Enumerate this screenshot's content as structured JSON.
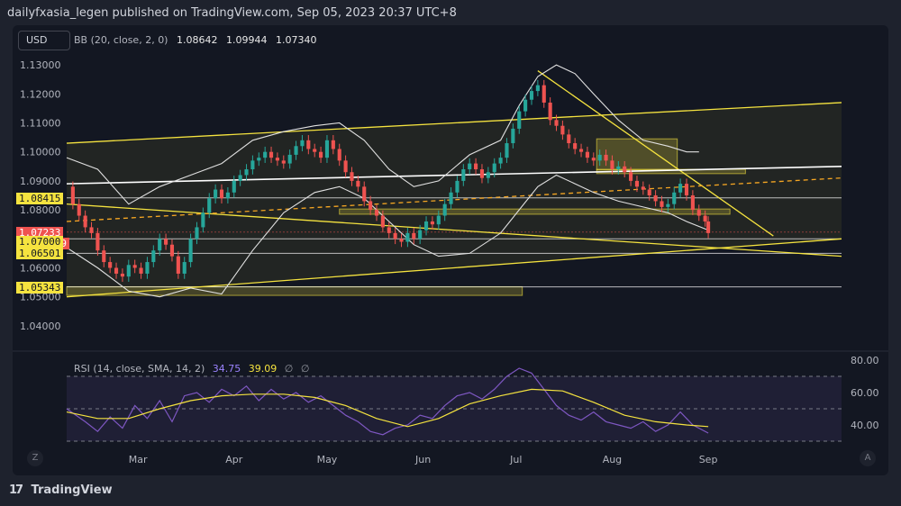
{
  "header": {
    "publisher_line": "dailyfxasia_legen published on TradingView.com, Sep 05, 2023 20:37 UTC+8"
  },
  "toolbar": {
    "currency": "USD"
  },
  "legend": {
    "indicator": "BB (20, close, 2, 0)",
    "basis": "1.08642",
    "upper": "1.09944",
    "lower": "1.07340"
  },
  "rsi_legend": {
    "indicator": "RSI (14, close, SMA, 14, 2)",
    "rsi": "34.75",
    "sma": "39.09",
    "extra1": "∅",
    "extra2": "∅"
  },
  "price_tags": [
    {
      "label": "1.08415",
      "style": "yellow"
    },
    {
      "label": "1.07233",
      "style": "red"
    },
    {
      "label": "09:22:49",
      "style": "red"
    },
    {
      "label": "1.07000",
      "style": "yellow"
    },
    {
      "label": "1.06501",
      "style": "yellow"
    },
    {
      "label": "1.05343",
      "style": "yellow"
    }
  ],
  "footer": {
    "brand": "TradingView",
    "logo_glyph": "17"
  },
  "corner_buttons": {
    "left": "Z",
    "right": "A"
  },
  "colors": {
    "up": "#26a69a",
    "down": "#ef5350",
    "trendline": "#f5e33f",
    "rsi": "#7e57c2",
    "bollinger": "#e0e0e0",
    "background": "#131722"
  },
  "chart_data": [
    {
      "type": "candlestick",
      "title": "",
      "ylim": [
        1.035,
        1.135
      ],
      "y_ticks": [
        "1.13000",
        "1.12000",
        "1.11000",
        "1.10000",
        "1.09000",
        "1.08000",
        "1.07000",
        "1.06000",
        "1.05000",
        "1.04000"
      ],
      "y_tick_values": [
        1.13,
        1.12,
        1.11,
        1.1,
        1.09,
        1.08,
        1.07,
        1.06,
        1.05,
        1.04
      ],
      "x_ticks": [
        "Mar",
        "Apr",
        "May",
        "Jun",
        "Jul",
        "Aug",
        "Sep"
      ],
      "x_tick_days": [
        23,
        54,
        84,
        115,
        145,
        176,
        207
      ],
      "day_range": [
        0,
        250
      ],
      "last_price": 1.07233,
      "close_series": [
        [
          0,
          1.088
        ],
        [
          2,
          1.082
        ],
        [
          4,
          1.078
        ],
        [
          6,
          1.074
        ],
        [
          8,
          1.072
        ],
        [
          10,
          1.066
        ],
        [
          12,
          1.062
        ],
        [
          14,
          1.06
        ],
        [
          16,
          1.058
        ],
        [
          18,
          1.057
        ],
        [
          20,
          1.061
        ],
        [
          22,
          1.06
        ],
        [
          24,
          1.058
        ],
        [
          26,
          1.062
        ],
        [
          28,
          1.066
        ],
        [
          30,
          1.07
        ],
        [
          32,
          1.068
        ],
        [
          34,
          1.064
        ],
        [
          36,
          1.058
        ],
        [
          38,
          1.062
        ],
        [
          40,
          1.07
        ],
        [
          42,
          1.074
        ],
        [
          44,
          1.079
        ],
        [
          46,
          1.084
        ],
        [
          48,
          1.087
        ],
        [
          50,
          1.084
        ],
        [
          52,
          1.086
        ],
        [
          54,
          1.09
        ],
        [
          56,
          1.092
        ],
        [
          58,
          1.094
        ],
        [
          60,
          1.097
        ],
        [
          62,
          1.098
        ],
        [
          64,
          1.1
        ],
        [
          66,
          1.098
        ],
        [
          68,
          1.097
        ],
        [
          70,
          1.096
        ],
        [
          72,
          1.099
        ],
        [
          74,
          1.102
        ],
        [
          76,
          1.104
        ],
        [
          78,
          1.101
        ],
        [
          80,
          1.1
        ],
        [
          82,
          1.098
        ],
        [
          84,
          1.104
        ],
        [
          86,
          1.101
        ],
        [
          88,
          1.097
        ],
        [
          90,
          1.093
        ],
        [
          92,
          1.09
        ],
        [
          94,
          1.088
        ],
        [
          96,
          1.083
        ],
        [
          98,
          1.08
        ],
        [
          100,
          1.078
        ],
        [
          102,
          1.074
        ],
        [
          104,
          1.072
        ],
        [
          106,
          1.07
        ],
        [
          108,
          1.069
        ],
        [
          110,
          1.072
        ],
        [
          112,
          1.07
        ],
        [
          114,
          1.073
        ],
        [
          116,
          1.076
        ],
        [
          118,
          1.075
        ],
        [
          120,
          1.078
        ],
        [
          122,
          1.082
        ],
        [
          124,
          1.086
        ],
        [
          126,
          1.09
        ],
        [
          128,
          1.094
        ],
        [
          130,
          1.096
        ],
        [
          132,
          1.094
        ],
        [
          134,
          1.091
        ],
        [
          136,
          1.093
        ],
        [
          138,
          1.096
        ],
        [
          140,
          1.098
        ],
        [
          142,
          1.103
        ],
        [
          144,
          1.108
        ],
        [
          146,
          1.114
        ],
        [
          148,
          1.118
        ],
        [
          150,
          1.121
        ],
        [
          152,
          1.123
        ],
        [
          154,
          1.117
        ],
        [
          156,
          1.111
        ],
        [
          158,
          1.109
        ],
        [
          160,
          1.106
        ],
        [
          162,
          1.103
        ],
        [
          164,
          1.101
        ],
        [
          166,
          1.1
        ],
        [
          168,
          1.098
        ],
        [
          170,
          1.097
        ],
        [
          172,
          1.099
        ],
        [
          174,
          1.097
        ],
        [
          176,
          1.094
        ],
        [
          178,
          1.095
        ],
        [
          180,
          1.093
        ],
        [
          182,
          1.09
        ],
        [
          184,
          1.088
        ],
        [
          186,
          1.087
        ],
        [
          188,
          1.085
        ],
        [
          190,
          1.083
        ],
        [
          192,
          1.081
        ],
        [
          194,
          1.082
        ],
        [
          196,
          1.086
        ],
        [
          198,
          1.089
        ],
        [
          200,
          1.085
        ],
        [
          202,
          1.08
        ],
        [
          204,
          1.078
        ],
        [
          206,
          1.076
        ],
        [
          207,
          1.072
        ]
      ],
      "bollinger_upper": [
        [
          0,
          1.098
        ],
        [
          10,
          1.094
        ],
        [
          20,
          1.082
        ],
        [
          30,
          1.088
        ],
        [
          40,
          1.092
        ],
        [
          50,
          1.096
        ],
        [
          60,
          1.104
        ],
        [
          70,
          1.107
        ],
        [
          80,
          1.109
        ],
        [
          88,
          1.11
        ],
        [
          96,
          1.104
        ],
        [
          104,
          1.094
        ],
        [
          112,
          1.088
        ],
        [
          120,
          1.09
        ],
        [
          130,
          1.099
        ],
        [
          140,
          1.104
        ],
        [
          146,
          1.116
        ],
        [
          152,
          1.126
        ],
        [
          158,
          1.13
        ],
        [
          164,
          1.127
        ],
        [
          170,
          1.12
        ],
        [
          178,
          1.111
        ],
        [
          186,
          1.104
        ],
        [
          194,
          1.102
        ],
        [
          200,
          1.1
        ],
        [
          204,
          1.1
        ]
      ],
      "bollinger_middle": [
        [
          0,
          1.08
        ],
        [
          10,
          1.075
        ],
        [
          20,
          1.068
        ],
        [
          30,
          1.066
        ],
        [
          40,
          1.071
        ],
        [
          50,
          1.08
        ],
        [
          60,
          1.088
        ],
        [
          70,
          1.093
        ],
        [
          80,
          1.097
        ],
        [
          88,
          1.098
        ],
        [
          96,
          1.095
        ],
        [
          104,
          1.088
        ],
        [
          112,
          1.08
        ],
        [
          120,
          1.078
        ],
        [
          130,
          1.083
        ],
        [
          140,
          1.093
        ],
        [
          146,
          1.102
        ],
        [
          152,
          1.108
        ],
        [
          158,
          1.112
        ],
        [
          164,
          1.108
        ],
        [
          170,
          1.103
        ],
        [
          178,
          1.098
        ],
        [
          186,
          1.094
        ],
        [
          194,
          1.09
        ],
        [
          200,
          1.088
        ],
        [
          207,
          1.086
        ]
      ],
      "bollinger_lower": [
        [
          0,
          1.067
        ],
        [
          10,
          1.06
        ],
        [
          20,
          1.052
        ],
        [
          30,
          1.05
        ],
        [
          40,
          1.053
        ],
        [
          50,
          1.051
        ],
        [
          60,
          1.066
        ],
        [
          70,
          1.079
        ],
        [
          80,
          1.086
        ],
        [
          88,
          1.088
        ],
        [
          96,
          1.084
        ],
        [
          104,
          1.076
        ],
        [
          112,
          1.068
        ],
        [
          120,
          1.064
        ],
        [
          130,
          1.065
        ],
        [
          140,
          1.072
        ],
        [
          146,
          1.08
        ],
        [
          152,
          1.088
        ],
        [
          158,
          1.092
        ],
        [
          164,
          1.089
        ],
        [
          170,
          1.086
        ],
        [
          178,
          1.083
        ],
        [
          186,
          1.081
        ],
        [
          194,
          1.079
        ],
        [
          200,
          1.076
        ],
        [
          207,
          1.073
        ]
      ],
      "trendlines": [
        {
          "kind": "yellow",
          "points": [
            [
              0,
              1.103
            ],
            [
              250,
              1.117
            ]
          ]
        },
        {
          "kind": "yellow",
          "points": [
            [
              0,
              1.082
            ],
            [
              250,
              1.064
            ]
          ]
        },
        {
          "kind": "yellow",
          "points": [
            [
              0,
              1.05
            ],
            [
              250,
              1.07
            ]
          ]
        },
        {
          "kind": "yellow",
          "points": [
            [
              152,
              1.128
            ],
            [
              228,
              1.071
            ]
          ]
        },
        {
          "kind": "white",
          "points": [
            [
              0,
              1.089
            ],
            [
              250,
              1.095
            ]
          ]
        },
        {
          "kind": "orange-dashed",
          "points": [
            [
              0,
              1.076
            ],
            [
              250,
              1.091
            ]
          ]
        }
      ],
      "horizontal_levels": [
        1.08415,
        1.07233,
        1.07,
        1.06501,
        1.05343
      ],
      "zones": [
        {
          "from_day": 0,
          "to_day": 147,
          "low": 1.0505,
          "high": 1.0535
        },
        {
          "from_day": 88,
          "to_day": 214,
          "low": 1.0785,
          "high": 1.0803
        },
        {
          "from_day": 171,
          "to_day": 219,
          "low": 1.0925,
          "high": 1.094
        },
        {
          "from_day": 171,
          "to_day": 197,
          "low": 1.0938,
          "high": 1.1045
        }
      ]
    },
    {
      "type": "line",
      "title": "",
      "ylim": [
        30,
        80
      ],
      "y_ticks": [
        "80.00",
        "60.00",
        "40.00"
      ],
      "y_tick_values": [
        80,
        60,
        40
      ],
      "bands": [
        70,
        50,
        30
      ],
      "series": [
        {
          "name": "RSI",
          "points": [
            [
              0,
              50
            ],
            [
              6,
              42
            ],
            [
              10,
              36
            ],
            [
              14,
              45
            ],
            [
              18,
              38
            ],
            [
              22,
              52
            ],
            [
              26,
              44
            ],
            [
              30,
              55
            ],
            [
              34,
              42
            ],
            [
              38,
              58
            ],
            [
              42,
              60
            ],
            [
              46,
              54
            ],
            [
              50,
              62
            ],
            [
              54,
              58
            ],
            [
              58,
              64
            ],
            [
              62,
              55
            ],
            [
              66,
              62
            ],
            [
              70,
              56
            ],
            [
              74,
              60
            ],
            [
              78,
              54
            ],
            [
              82,
              58
            ],
            [
              86,
              52
            ],
            [
              90,
              46
            ],
            [
              94,
              42
            ],
            [
              98,
              36
            ],
            [
              102,
              34
            ],
            [
              106,
              38
            ],
            [
              110,
              40
            ],
            [
              114,
              46
            ],
            [
              118,
              44
            ],
            [
              122,
              52
            ],
            [
              126,
              58
            ],
            [
              130,
              60
            ],
            [
              134,
              56
            ],
            [
              138,
              62
            ],
            [
              142,
              70
            ],
            [
              146,
              75
            ],
            [
              150,
              72
            ],
            [
              154,
              62
            ],
            [
              158,
              52
            ],
            [
              162,
              46
            ],
            [
              166,
              43
            ],
            [
              170,
              48
            ],
            [
              174,
              42
            ],
            [
              178,
              40
            ],
            [
              182,
              38
            ],
            [
              186,
              42
            ],
            [
              190,
              36
            ],
            [
              194,
              40
            ],
            [
              198,
              48
            ],
            [
              202,
              40
            ],
            [
              207,
              35
            ]
          ]
        },
        {
          "name": "SMA",
          "points": [
            [
              0,
              48
            ],
            [
              10,
              44
            ],
            [
              20,
              44
            ],
            [
              30,
              50
            ],
            [
              40,
              55
            ],
            [
              50,
              58
            ],
            [
              60,
              59
            ],
            [
              70,
              59
            ],
            [
              80,
              57
            ],
            [
              90,
              52
            ],
            [
              100,
              44
            ],
            [
              110,
              39
            ],
            [
              120,
              44
            ],
            [
              130,
              53
            ],
            [
              140,
              58
            ],
            [
              150,
              62
            ],
            [
              160,
              61
            ],
            [
              170,
              54
            ],
            [
              180,
              46
            ],
            [
              190,
              42
            ],
            [
              200,
              40
            ],
            [
              207,
              39
            ]
          ]
        }
      ]
    }
  ]
}
